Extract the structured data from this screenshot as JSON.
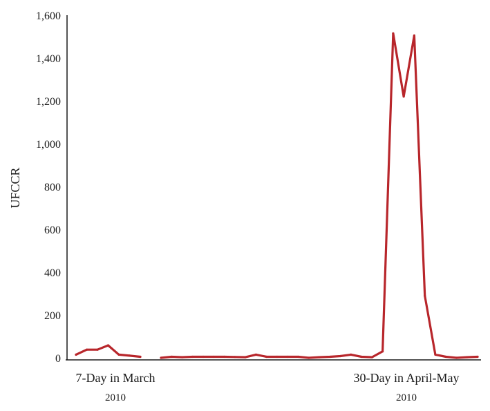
{
  "chart_data": {
    "type": "line",
    "ylabel": "UFCCR",
    "ylim": [
      0,
      1600
    ],
    "yticks": [
      {
        "value": 0,
        "label": "0"
      },
      {
        "value": 200,
        "label": "200"
      },
      {
        "value": 400,
        "label": "400"
      },
      {
        "value": 600,
        "label": "600"
      },
      {
        "value": 800,
        "label": "800"
      },
      {
        "value": 1000,
        "label": "1,000"
      },
      {
        "value": 1200,
        "label": "1,200"
      },
      {
        "value": 1400,
        "label": "1,400"
      },
      {
        "value": 1600,
        "label": "1,600"
      }
    ],
    "grid": false,
    "line_color": "#b8262b",
    "groups": [
      {
        "label": "7-Day in March",
        "year": "2010"
      },
      {
        "label": "30-Day in April-May",
        "year": "2010"
      }
    ],
    "series": [
      {
        "segment": "7-Day in March",
        "values": [
          15,
          38,
          38,
          58,
          15,
          10,
          5
        ]
      },
      {
        "segment": "30-Day in April-May",
        "values": [
          0,
          5,
          3,
          5,
          5,
          5,
          5,
          4,
          3,
          15,
          5,
          5,
          5,
          5,
          0,
          3,
          5,
          8,
          15,
          5,
          3,
          30,
          1515,
          1220,
          1505,
          290,
          15,
          5,
          0,
          3,
          5
        ]
      }
    ]
  }
}
